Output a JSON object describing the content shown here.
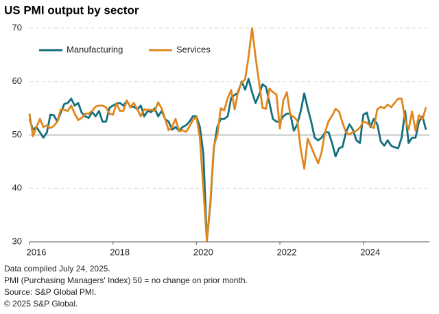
{
  "chart_data": {
    "type": "line",
    "title": "US PMI output by sector",
    "categories": [
      "2016",
      null,
      null,
      null,
      null,
      null,
      null,
      null,
      null,
      null,
      null,
      null,
      null,
      null,
      null,
      null,
      null,
      null,
      null,
      null,
      null,
      null,
      null,
      null,
      "2018",
      null,
      null,
      null,
      null,
      null,
      null,
      null,
      null,
      null,
      null,
      null,
      null,
      null,
      null,
      null,
      null,
      null,
      null,
      null,
      null,
      null,
      null,
      null,
      "2020",
      null,
      null,
      null,
      null,
      null,
      null,
      null,
      null,
      null,
      null,
      null,
      null,
      null,
      null,
      null,
      null,
      null,
      null,
      null,
      null,
      null,
      null,
      null,
      "2022",
      null,
      null,
      null,
      null,
      null,
      null,
      null,
      null,
      null,
      null,
      null,
      null,
      null,
      null,
      null,
      null,
      null,
      null,
      null,
      null,
      null,
      null,
      null,
      "2024",
      null,
      null,
      null,
      null,
      null,
      null,
      null,
      null,
      null,
      null,
      null,
      null,
      null,
      null,
      null,
      null,
      null,
      null
    ],
    "series": [
      {
        "name": "Manufacturing",
        "color": "#136f7d",
        "values": [
          53,
          51,
          51.5,
          50.5,
          49.5,
          50.5,
          53.8,
          53.7,
          52.5,
          54.2,
          55.8,
          56,
          56.8,
          55.5,
          56,
          54.2,
          53.5,
          53.2,
          54.3,
          53.5,
          54.5,
          52.5,
          52.5,
          55.1,
          55.5,
          55.9,
          56,
          55.5,
          56.4,
          55.3,
          55.3,
          54.8,
          55.5,
          53.5,
          54.5,
          54.3,
          55,
          53.5,
          54.5,
          53,
          52.5,
          51,
          51.5,
          50.8,
          51.5,
          51.8,
          52.5,
          53.5,
          53.5,
          51.5,
          46.5,
          30.2,
          37,
          47.5,
          51.5,
          53,
          53,
          53.5,
          57,
          57.5,
          58,
          60,
          58.5,
          60.5,
          58,
          56,
          57.5,
          59.5,
          59,
          56,
          53,
          52.5,
          52.5,
          53.5,
          54,
          54,
          50.8,
          52,
          54.5,
          57.8,
          55,
          52.5,
          49.5,
          49,
          49.5,
          50.5,
          50.5,
          48.5,
          46,
          47.5,
          47.8,
          50.5,
          52,
          51,
          49,
          48.5,
          53.8,
          54.2,
          51.5,
          53,
          52,
          48.8,
          48,
          49,
          48,
          47.7,
          47.5,
          49.5,
          54.5,
          48.5,
          49.5,
          49.5,
          52.5,
          53.5,
          51
        ]
      },
      {
        "name": "Services",
        "color": "#e0861c",
        "values": [
          54,
          49.8,
          51.5,
          53,
          51.5,
          51.8,
          51.3,
          51.7,
          52.5,
          54.8,
          54.7,
          54.5,
          55.5,
          54,
          52.8,
          53.2,
          54,
          54,
          54.5,
          55.3,
          55.5,
          55.5,
          55.2,
          54,
          53.8,
          55.9,
          54.5,
          54.5,
          56.5,
          55.2,
          56,
          54.8,
          53.5,
          54.8,
          54.7,
          54.7,
          54.5,
          56.1,
          55,
          53,
          50.9,
          51.5,
          53,
          50.7,
          50.9,
          50.6,
          51.6,
          52.8,
          53.4,
          49.4,
          39.8,
          30.2,
          37.5,
          47.9,
          50,
          55,
          54.6,
          56.9,
          58.4,
          54.8,
          58.3,
          59.8,
          60.4,
          64.7,
          70,
          64.6,
          59.9,
          55.1,
          54.9,
          58.7,
          58,
          57.6,
          51.2,
          56.5,
          58,
          53.7,
          53.4,
          52.7,
          47.3,
          43.7,
          49.3,
          47.8,
          46.2,
          44.7,
          46.8,
          50.6,
          52.6,
          53.6,
          54.9,
          54.4,
          52.3,
          50.5,
          50.1,
          50.6,
          50.8,
          51.4,
          52.5,
          52.3,
          51.7,
          51.3,
          54.8,
          55.3,
          55,
          55.7,
          55.2,
          56,
          56.8,
          56.8,
          52.9,
          51,
          54.4,
          50.8,
          53.7,
          52.9,
          55.2
        ]
      }
    ],
    "ylim": [
      30,
      70
    ],
    "yticks": [
      30,
      40,
      50,
      60,
      70
    ],
    "grid": true,
    "reference_line": 50,
    "notes": [
      "Data compiled July 24, 2025.",
      "PMI (Purchasing Managers' Index) 50 =  no change on prior month.",
      "Source: S&P Global PMI.",
      "© 2025 S&P Global."
    ]
  }
}
